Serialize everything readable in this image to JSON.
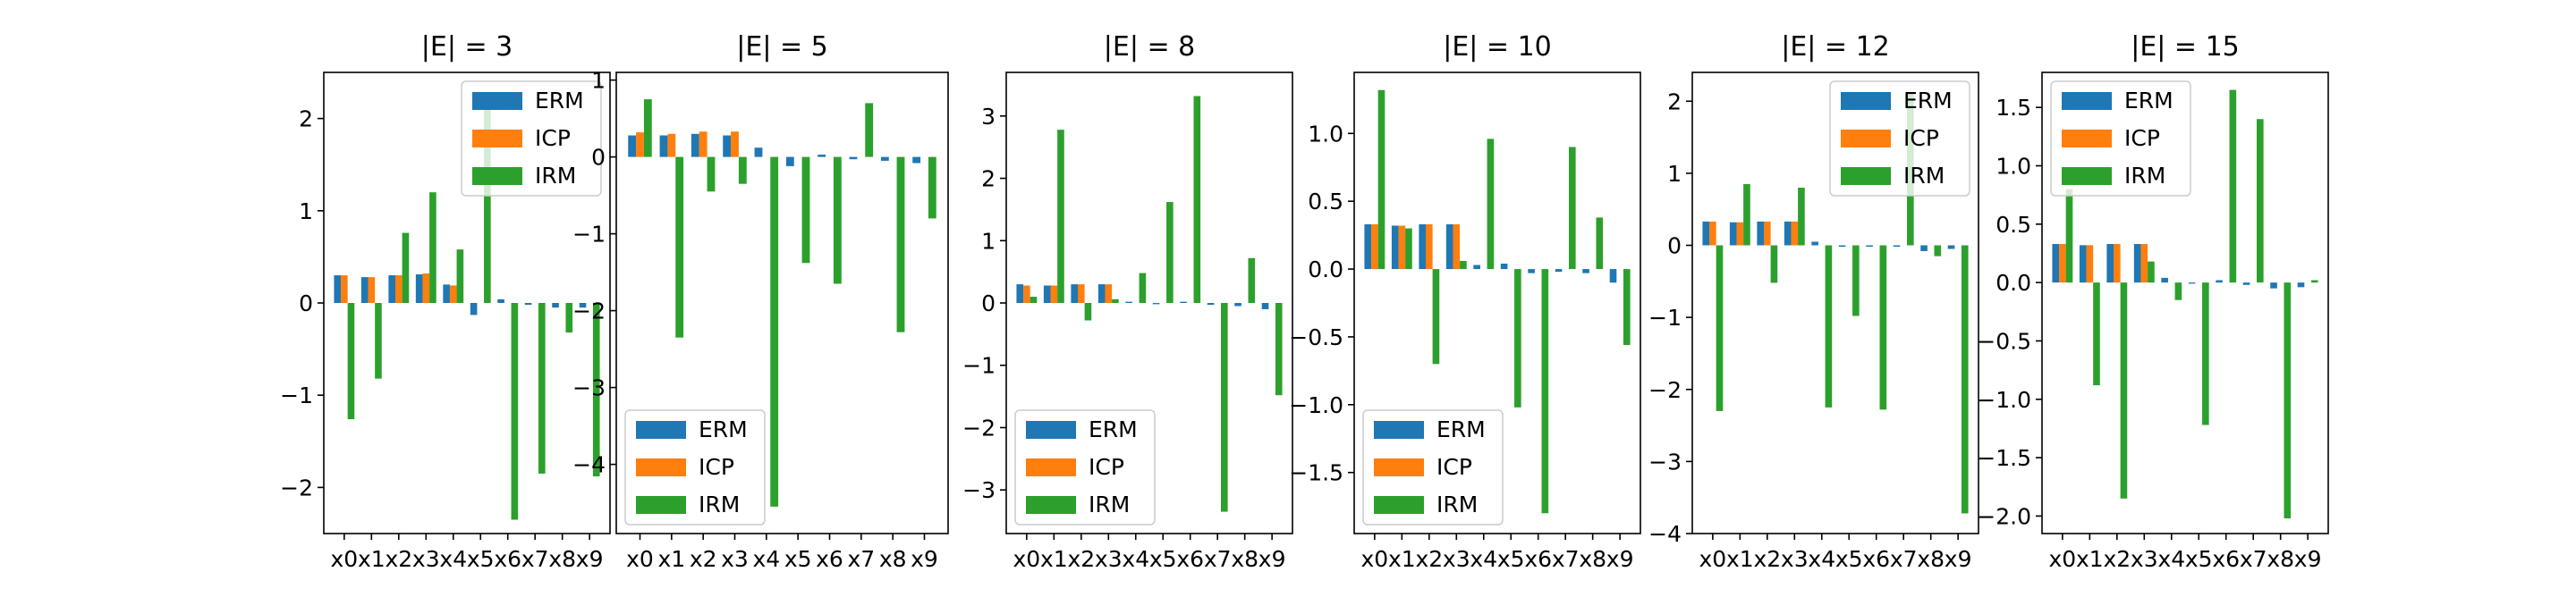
{
  "figure": {
    "legend_labels": [
      "ERM",
      "ICP",
      "IRM"
    ],
    "colors": {
      "ERM": "#1f77b4",
      "ICP": "#ff7f0e",
      "IRM": "#2ca02c"
    }
  },
  "chart_data": [
    {
      "type": "bar",
      "title": "|E| = 3",
      "categories": [
        "x0",
        "x1",
        "x2",
        "x3",
        "x4",
        "x5",
        "x6",
        "x7",
        "x8",
        "x9"
      ],
      "ylim": [
        -2.5,
        2.5
      ],
      "yticks": [
        -2,
        -1,
        0,
        1,
        2
      ],
      "ytick_labels": [
        "−2",
        "−1",
        "0",
        "1",
        "2"
      ],
      "legend_loc": "upper right",
      "series": [
        {
          "name": "ERM",
          "values": [
            0.3,
            0.28,
            0.3,
            0.31,
            0.2,
            -0.13,
            0.04,
            -0.02,
            -0.05,
            -0.05
          ]
        },
        {
          "name": "ICP",
          "values": [
            0.3,
            0.28,
            0.3,
            0.32,
            0.19,
            0.0,
            0.0,
            0.0,
            0.0,
            0.0
          ]
        },
        {
          "name": "IRM",
          "values": [
            -1.26,
            -0.82,
            0.76,
            1.2,
            0.58,
            2.1,
            -2.35,
            -1.85,
            -0.32,
            -1.88
          ]
        }
      ]
    },
    {
      "type": "bar",
      "title": "|E| = 5",
      "categories": [
        "x0",
        "x1",
        "x2",
        "x3",
        "x4",
        "x5",
        "x6",
        "x7",
        "x8",
        "x9"
      ],
      "ylim": [
        -4.9,
        1.1
      ],
      "yticks": [
        -4,
        -3,
        -2,
        -1,
        0,
        1
      ],
      "ytick_labels": [
        "−4",
        "−3",
        "−2",
        "−1",
        "0",
        "1"
      ],
      "legend_loc": "lower left",
      "series": [
        {
          "name": "ERM",
          "values": [
            0.28,
            0.28,
            0.3,
            0.28,
            0.12,
            -0.12,
            0.03,
            -0.03,
            -0.05,
            -0.08
          ]
        },
        {
          "name": "ICP",
          "values": [
            0.32,
            0.3,
            0.33,
            0.33,
            0.0,
            0.0,
            0.0,
            0.0,
            0.0,
            0.0
          ]
        },
        {
          "name": "IRM",
          "values": [
            0.75,
            -2.35,
            -0.45,
            -0.35,
            -4.55,
            -1.38,
            -1.65,
            0.7,
            -2.28,
            -0.8
          ]
        }
      ]
    },
    {
      "type": "bar",
      "title": "|E| = 8",
      "categories": [
        "x0",
        "x1",
        "x2",
        "x3",
        "x4",
        "x5",
        "x6",
        "x7",
        "x8",
        "x9"
      ],
      "ylim": [
        -3.7,
        3.7
      ],
      "yticks": [
        -3,
        -2,
        -1,
        0,
        1,
        2,
        3
      ],
      "ytick_labels": [
        "−3",
        "−2",
        "−1",
        "0",
        "1",
        "2",
        "3"
      ],
      "legend_loc": "lower left",
      "series": [
        {
          "name": "ERM",
          "values": [
            0.3,
            0.28,
            0.3,
            0.3,
            0.02,
            -0.02,
            0.02,
            -0.03,
            -0.05,
            -0.1
          ]
        },
        {
          "name": "ICP",
          "values": [
            0.28,
            0.28,
            0.3,
            0.3,
            0.0,
            0.0,
            0.0,
            0.0,
            0.0,
            0.0
          ]
        },
        {
          "name": "IRM",
          "values": [
            0.1,
            2.78,
            -0.28,
            0.06,
            0.48,
            1.62,
            3.32,
            -3.35,
            0.72,
            -1.48
          ]
        }
      ]
    },
    {
      "type": "bar",
      "title": "|E| = 10",
      "categories": [
        "x0",
        "x1",
        "x2",
        "x3",
        "x4",
        "x5",
        "x6",
        "x7",
        "x8",
        "x9"
      ],
      "ylim": [
        -1.95,
        1.45
      ],
      "yticks": [
        -1.5,
        -1.0,
        -0.5,
        0.0,
        0.5,
        1.0
      ],
      "ytick_labels": [
        "−1.5",
        "−1.0",
        "−0.5",
        "0.0",
        "0.5",
        "1.0"
      ],
      "legend_loc": "lower left",
      "series": [
        {
          "name": "ERM",
          "values": [
            0.33,
            0.32,
            0.33,
            0.33,
            0.03,
            0.04,
            -0.03,
            -0.02,
            -0.03,
            -0.1
          ]
        },
        {
          "name": "ICP",
          "values": [
            0.33,
            0.32,
            0.33,
            0.33,
            0.0,
            0.0,
            0.0,
            0.0,
            0.0,
            0.0
          ]
        },
        {
          "name": "IRM",
          "values": [
            1.32,
            0.3,
            -0.7,
            0.06,
            0.96,
            -1.02,
            -1.8,
            0.9,
            0.38,
            -0.56
          ]
        }
      ]
    },
    {
      "type": "bar",
      "title": "|E| = 12",
      "categories": [
        "x0",
        "x1",
        "x2",
        "x3",
        "x4",
        "x5",
        "x6",
        "x7",
        "x8",
        "x9"
      ],
      "ylim": [
        -4.0,
        2.4
      ],
      "yticks": [
        -4,
        -3,
        -2,
        -1,
        0,
        1,
        2
      ],
      "ytick_labels": [
        "−4",
        "−3",
        "−2",
        "−1",
        "0",
        "1",
        "2"
      ],
      "legend_loc": "upper right",
      "series": [
        {
          "name": "ERM",
          "values": [
            0.33,
            0.32,
            0.33,
            0.33,
            0.05,
            -0.02,
            -0.02,
            -0.02,
            -0.08,
            -0.05
          ]
        },
        {
          "name": "ICP",
          "values": [
            0.33,
            0.32,
            0.33,
            0.33,
            0.0,
            0.0,
            0.0,
            0.0,
            0.0,
            0.0
          ]
        },
        {
          "name": "IRM",
          "values": [
            -2.3,
            0.85,
            -0.52,
            0.8,
            -2.25,
            -0.98,
            -2.28,
            2.1,
            -0.15,
            -3.72
          ]
        }
      ]
    },
    {
      "type": "bar",
      "title": "|E| = 15",
      "categories": [
        "x0",
        "x1",
        "x2",
        "x3",
        "x4",
        "x5",
        "x6",
        "x7",
        "x8",
        "x9"
      ],
      "ylim": [
        -2.15,
        1.8
      ],
      "yticks": [
        -2.0,
        -1.5,
        -1.0,
        -0.5,
        0.0,
        0.5,
        1.0,
        1.5
      ],
      "ytick_labels": [
        "−2.0",
        "−1.5",
        "−1.0",
        "−0.5",
        "0.0",
        "0.5",
        "1.0",
        "1.5"
      ],
      "legend_loc": "upper left",
      "series": [
        {
          "name": "ERM",
          "values": [
            0.33,
            0.32,
            0.33,
            0.33,
            0.04,
            -0.01,
            0.02,
            -0.02,
            -0.05,
            -0.04
          ]
        },
        {
          "name": "ICP",
          "values": [
            0.33,
            0.32,
            0.33,
            0.33,
            0.0,
            0.0,
            0.0,
            0.0,
            0.0,
            0.0
          ]
        },
        {
          "name": "IRM",
          "values": [
            0.8,
            -0.88,
            -1.85,
            0.18,
            -0.15,
            -1.22,
            1.65,
            1.4,
            -2.02,
            0.02
          ]
        }
      ]
    }
  ]
}
